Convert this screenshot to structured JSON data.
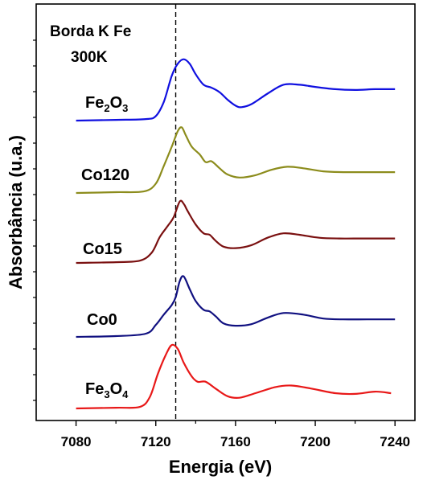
{
  "chart_data": {
    "type": "line",
    "annotation": {
      "line1": "Borda K Fe",
      "line2": "300K"
    },
    "xlabel": "Energia (eV)",
    "ylabel": "Absorbância (u.a.)",
    "xlim": [
      7060,
      7250
    ],
    "xticks": [
      7080,
      7120,
      7160,
      7200,
      7240
    ],
    "xtick_labels": [
      "7080",
      "7120",
      "7160",
      "7200",
      "7240"
    ],
    "yticks_labeled": false,
    "reference_line": {
      "x": 7130,
      "style": "dashed"
    },
    "series": [
      {
        "name": "Fe2O3",
        "label_parts": [
          {
            "t": "Fe",
            "sub": false
          },
          {
            "t": "2",
            "sub": true
          },
          {
            "t": "O",
            "sub": false
          },
          {
            "t": "3",
            "sub": true
          }
        ],
        "color": "#1010e0",
        "baseline": 0.1,
        "points": [
          [
            7080,
            0.1
          ],
          [
            7100,
            0.11
          ],
          [
            7115,
            0.12
          ],
          [
            7120,
            0.16
          ],
          [
            7124,
            0.35
          ],
          [
            7128,
            0.7
          ],
          [
            7131,
            0.86
          ],
          [
            7134,
            0.92
          ],
          [
            7137,
            0.86
          ],
          [
            7140,
            0.72
          ],
          [
            7144,
            0.58
          ],
          [
            7148,
            0.54
          ],
          [
            7152,
            0.48
          ],
          [
            7156,
            0.38
          ],
          [
            7160,
            0.3
          ],
          [
            7163,
            0.28
          ],
          [
            7168,
            0.32
          ],
          [
            7176,
            0.46
          ],
          [
            7184,
            0.58
          ],
          [
            7192,
            0.58
          ],
          [
            7200,
            0.55
          ],
          [
            7210,
            0.52
          ],
          [
            7220,
            0.51
          ],
          [
            7230,
            0.52
          ],
          [
            7240,
            0.52
          ]
        ]
      },
      {
        "name": "Co120",
        "label_parts": [
          {
            "t": "Co120",
            "sub": false
          }
        ],
        "color": "#8c8c1c",
        "baseline": 0.1,
        "points": [
          [
            7080,
            0.1
          ],
          [
            7100,
            0.11
          ],
          [
            7114,
            0.12
          ],
          [
            7120,
            0.22
          ],
          [
            7124,
            0.45
          ],
          [
            7128,
            0.7
          ],
          [
            7131,
            0.9
          ],
          [
            7133,
            0.95
          ],
          [
            7135,
            0.85
          ],
          [
            7138,
            0.7
          ],
          [
            7142,
            0.6
          ],
          [
            7145,
            0.5
          ],
          [
            7148,
            0.51
          ],
          [
            7152,
            0.42
          ],
          [
            7156,
            0.34
          ],
          [
            7162,
            0.3
          ],
          [
            7170,
            0.33
          ],
          [
            7178,
            0.4
          ],
          [
            7186,
            0.44
          ],
          [
            7194,
            0.42
          ],
          [
            7204,
            0.38
          ],
          [
            7214,
            0.37
          ],
          [
            7224,
            0.37
          ],
          [
            7240,
            0.37
          ]
        ]
      },
      {
        "name": "Co15",
        "label_parts": [
          {
            "t": "Co15",
            "sub": false
          }
        ],
        "color": "#7a1010",
        "baseline": 0.1,
        "points": [
          [
            7080,
            0.1
          ],
          [
            7100,
            0.11
          ],
          [
            7112,
            0.13
          ],
          [
            7118,
            0.24
          ],
          [
            7122,
            0.45
          ],
          [
            7126,
            0.6
          ],
          [
            7129,
            0.72
          ],
          [
            7132,
            0.93
          ],
          [
            7134,
            0.9
          ],
          [
            7136,
            0.8
          ],
          [
            7140,
            0.62
          ],
          [
            7144,
            0.5
          ],
          [
            7147,
            0.48
          ],
          [
            7150,
            0.4
          ],
          [
            7154,
            0.32
          ],
          [
            7160,
            0.3
          ],
          [
            7168,
            0.34
          ],
          [
            7176,
            0.44
          ],
          [
            7184,
            0.5
          ],
          [
            7192,
            0.48
          ],
          [
            7202,
            0.44
          ],
          [
            7212,
            0.43
          ],
          [
            7224,
            0.43
          ],
          [
            7240,
            0.43
          ]
        ]
      },
      {
        "name": "Co0",
        "label_parts": [
          {
            "t": "Co0",
            "sub": false
          }
        ],
        "color": "#101080",
        "baseline": 0.1,
        "points": [
          [
            7080,
            0.1
          ],
          [
            7100,
            0.11
          ],
          [
            7115,
            0.14
          ],
          [
            7120,
            0.25
          ],
          [
            7124,
            0.38
          ],
          [
            7128,
            0.5
          ],
          [
            7130,
            0.6
          ],
          [
            7132,
            0.8
          ],
          [
            7134,
            0.86
          ],
          [
            7137,
            0.7
          ],
          [
            7140,
            0.55
          ],
          [
            7144,
            0.44
          ],
          [
            7147,
            0.42
          ],
          [
            7150,
            0.36
          ],
          [
            7154,
            0.27
          ],
          [
            7160,
            0.24
          ],
          [
            7168,
            0.26
          ],
          [
            7176,
            0.34
          ],
          [
            7184,
            0.4
          ],
          [
            7194,
            0.38
          ],
          [
            7204,
            0.33
          ],
          [
            7214,
            0.32
          ],
          [
            7226,
            0.32
          ],
          [
            7240,
            0.32
          ]
        ]
      },
      {
        "name": "Fe3O4",
        "label_parts": [
          {
            "t": "Fe",
            "sub": false
          },
          {
            "t": "3",
            "sub": true
          },
          {
            "t": "O",
            "sub": false
          },
          {
            "t": "4",
            "sub": true
          }
        ],
        "color": "#e81818",
        "baseline": 0.1,
        "points": [
          [
            7080,
            0.1
          ],
          [
            7100,
            0.11
          ],
          [
            7112,
            0.12
          ],
          [
            7117,
            0.25
          ],
          [
            7121,
            0.55
          ],
          [
            7125,
            0.8
          ],
          [
            7128,
            0.93
          ],
          [
            7131,
            0.88
          ],
          [
            7134,
            0.7
          ],
          [
            7138,
            0.52
          ],
          [
            7141,
            0.45
          ],
          [
            7145,
            0.45
          ],
          [
            7150,
            0.36
          ],
          [
            7156,
            0.26
          ],
          [
            7162,
            0.24
          ],
          [
            7170,
            0.3
          ],
          [
            7180,
            0.38
          ],
          [
            7188,
            0.4
          ],
          [
            7198,
            0.36
          ],
          [
            7210,
            0.3
          ],
          [
            7220,
            0.29
          ],
          [
            7230,
            0.32
          ],
          [
            7238,
            0.3
          ]
        ]
      }
    ]
  }
}
